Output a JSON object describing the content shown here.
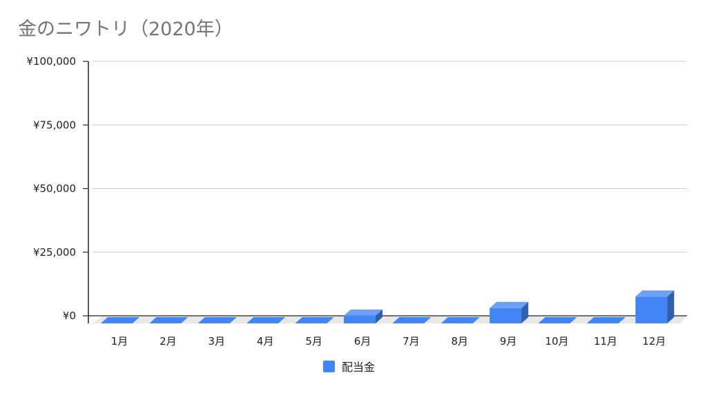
{
  "chart_data": {
    "type": "bar",
    "title": "金のニワトリ（2020年）",
    "categories": [
      "1月",
      "2月",
      "3月",
      "4月",
      "5月",
      "6月",
      "7月",
      "8月",
      "9月",
      "10月",
      "11月",
      "12月"
    ],
    "series": [
      {
        "name": "配当金",
        "values": [
          0,
          0,
          0,
          0,
          0,
          3000,
          0,
          0,
          6000,
          0,
          0,
          10500
        ]
      }
    ],
    "y_ticks": [
      "¥0",
      "¥25,000",
      "¥50,000",
      "¥75,000",
      "¥100,000"
    ],
    "ylim": [
      0,
      100000
    ],
    "grid": true,
    "legend": "bottom",
    "colors": {
      "bar_front": "#4285f4",
      "bar_top": "#6fa0f7",
      "bar_side": "#2f5fae",
      "floor": "#e8e8e8",
      "grid": "#cccccc",
      "title": "#757575"
    }
  }
}
